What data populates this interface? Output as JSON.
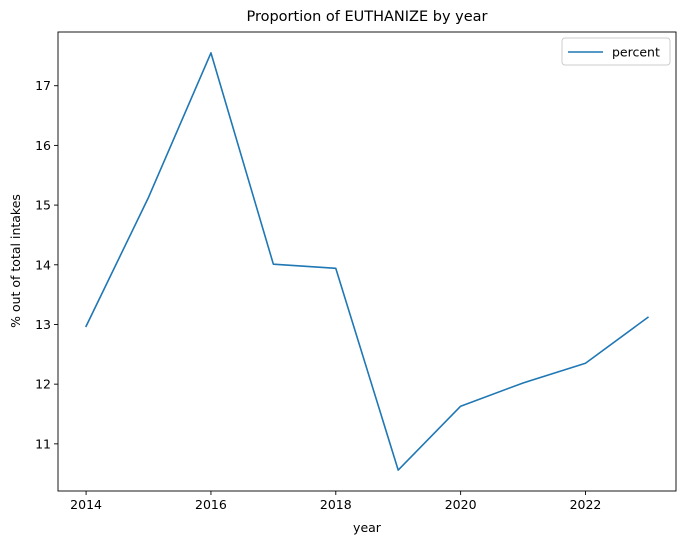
{
  "chart_data": {
    "type": "line",
    "title": "Proportion of EUTHANIZE by year",
    "xlabel": "year",
    "ylabel": "% out of total intakes",
    "x": [
      2014,
      2015,
      2016,
      2017,
      2018,
      2019,
      2020,
      2021,
      2022,
      2023
    ],
    "series": [
      {
        "name": "percent",
        "color": "#1f77b4",
        "values": [
          12.97,
          15.13,
          17.55,
          14.01,
          13.94,
          10.56,
          11.63,
          12.02,
          12.35,
          13.12
        ]
      }
    ],
    "xlim": [
      2013.55,
      2023.45
    ],
    "ylim": [
      10.21,
      17.9
    ],
    "xticks": [
      2014,
      2016,
      2018,
      2020,
      2022
    ],
    "yticks": [
      11,
      12,
      13,
      14,
      15,
      16,
      17
    ],
    "grid": false,
    "legend_position": "top-right"
  }
}
